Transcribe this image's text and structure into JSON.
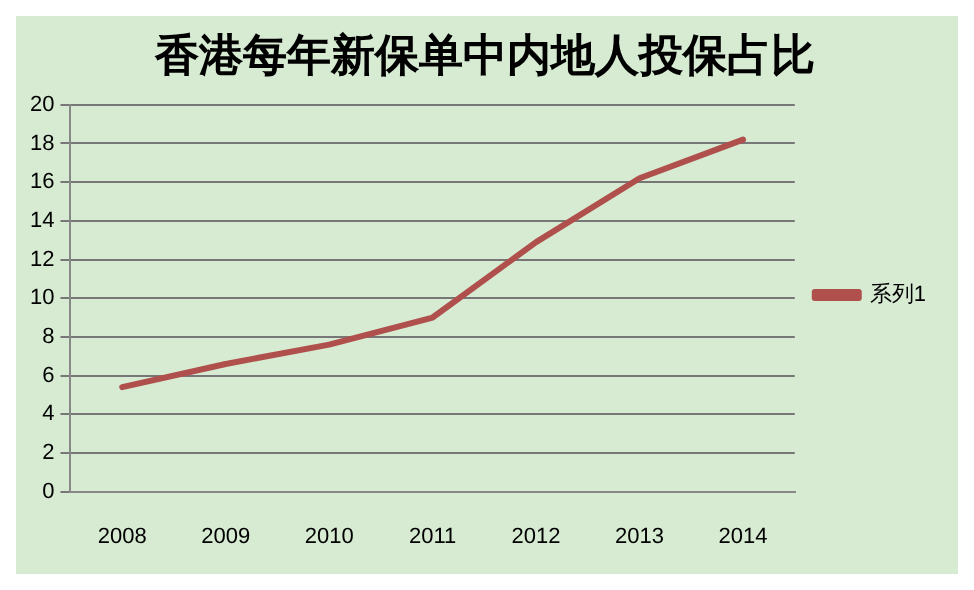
{
  "chart_data": {
    "type": "line",
    "title": "香港每年新保单中内地人投保占比",
    "categories": [
      "2008",
      "2009",
      "2010",
      "2011",
      "2012",
      "2013",
      "2014"
    ],
    "series": [
      {
        "name": "系列1",
        "color": "#b0504c",
        "values": [
          5.4,
          6.6,
          7.6,
          9.0,
          12.9,
          16.2,
          18.2
        ]
      }
    ],
    "ylim": [
      0,
      20
    ],
    "yticks": [
      0,
      2,
      4,
      6,
      8,
      10,
      12,
      14,
      16,
      18,
      20
    ],
    "grid": "y",
    "legend": "right",
    "marker": "none",
    "line_style": "solid"
  }
}
